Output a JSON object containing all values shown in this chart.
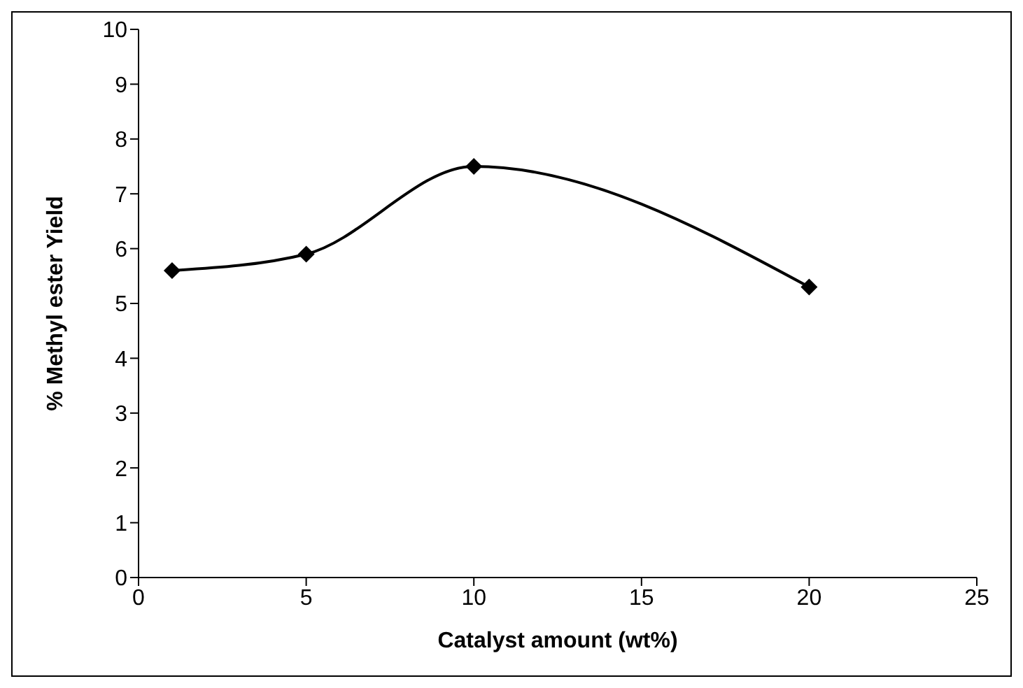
{
  "chart_data": {
    "type": "line",
    "xlabel": "Catalyst amount (wt%)",
    "ylabel": "% Methyl ester Yield",
    "x": [
      1,
      5,
      10,
      20
    ],
    "series": [
      {
        "color": "#000000",
        "values": [
          5.6,
          5.9,
          7.5,
          5.3
        ]
      }
    ],
    "xlim": [
      0,
      25
    ],
    "xticks": [
      0,
      5,
      10,
      15,
      20,
      25
    ],
    "ylim": [
      0,
      10
    ],
    "yticks": [
      0,
      1,
      2,
      3,
      4,
      5,
      6,
      7,
      8,
      9,
      10
    ],
    "grid": false,
    "legend": false,
    "marker": "diamond",
    "line_style": "solid"
  }
}
